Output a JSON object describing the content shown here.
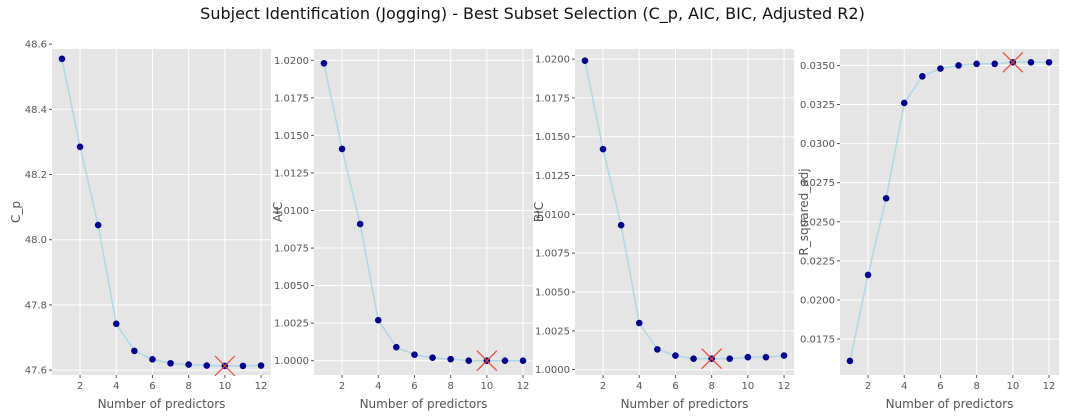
{
  "figure": {
    "title": "Subject Identification (Jogging) - Best Subset Selection (C_p, AIC, BIC, Adjusted R2)"
  },
  "style": {
    "panel_bg": "#e5e5e5",
    "grid": "#ffffff",
    "line_color": "#add8e6",
    "marker_color": "#00008b",
    "best_marker_color": "#e8483a"
  },
  "chart_data": [
    {
      "type": "line",
      "xlabel": "Number of predictors",
      "ylabel": "C_p",
      "x": [
        1,
        2,
        3,
        4,
        5,
        6,
        7,
        8,
        9,
        10,
        11,
        12
      ],
      "values": [
        48.555,
        48.285,
        48.045,
        47.742,
        47.659,
        47.633,
        47.621,
        47.617,
        47.614,
        47.613,
        47.613,
        47.614
      ],
      "best_x": 10,
      "xlim": [
        0.45,
        12.55
      ],
      "ylim": [
        47.585,
        48.585
      ],
      "xticks": [
        2,
        4,
        6,
        8,
        10,
        12
      ],
      "yticks": [
        47.6,
        47.8,
        48.0,
        48.2,
        48.4,
        48.6
      ],
      "ytick_labels": [
        "47.6",
        "47.8",
        "48.0",
        "48.2",
        "48.4",
        "48.6"
      ]
    },
    {
      "type": "line",
      "xlabel": "Number of predictors",
      "ylabel": "AIC",
      "x": [
        1,
        2,
        3,
        4,
        5,
        6,
        7,
        8,
        9,
        10,
        11,
        12
      ],
      "values": [
        1.0198,
        1.0141,
        1.0091,
        1.0027,
        1.0009,
        1.0004,
        1.0002,
        1.0001,
        1.0,
        1.0,
        1.0,
        1.0
      ],
      "best_x": 10,
      "xlim": [
        0.45,
        12.55
      ],
      "ylim": [
        0.99905,
        1.02075
      ],
      "xticks": [
        2,
        4,
        6,
        8,
        10,
        12
      ],
      "yticks": [
        1.0,
        1.0025,
        1.005,
        1.0075,
        1.01,
        1.0125,
        1.015,
        1.0175,
        1.02
      ],
      "ytick_labels": [
        "1.0000",
        "1.0025",
        "1.0050",
        "1.0075",
        "1.0100",
        "1.0125",
        "1.0150",
        "1.0175",
        "1.0200"
      ]
    },
    {
      "type": "line",
      "xlabel": "Number of predictors",
      "ylabel": "BIC",
      "x": [
        1,
        2,
        3,
        4,
        5,
        6,
        7,
        8,
        9,
        10,
        11,
        12
      ],
      "values": [
        1.0199,
        1.0142,
        1.0093,
        1.003,
        1.0013,
        1.0009,
        1.0007,
        1.0007,
        1.0007,
        1.0008,
        1.0008,
        1.0009
      ],
      "best_x": 8,
      "xlim": [
        0.45,
        12.55
      ],
      "ylim": [
        0.99965,
        1.02065
      ],
      "xticks": [
        2,
        4,
        6,
        8,
        10,
        12
      ],
      "yticks": [
        1.0,
        1.0025,
        1.005,
        1.0075,
        1.01,
        1.0125,
        1.015,
        1.0175,
        1.02
      ],
      "ytick_labels": [
        "1.0000",
        "1.0025",
        "1.0050",
        "1.0075",
        "1.0100",
        "1.0125",
        "1.0150",
        "1.0175",
        "1.0200"
      ]
    },
    {
      "type": "line",
      "xlabel": "Number of predictors",
      "ylabel": "R_squared_adj",
      "x": [
        1,
        2,
        3,
        4,
        5,
        6,
        7,
        8,
        9,
        10,
        11,
        12
      ],
      "values": [
        0.0161,
        0.0216,
        0.0265,
        0.0326,
        0.0343,
        0.0348,
        0.035,
        0.0351,
        0.0351,
        0.0352,
        0.0352,
        0.0352
      ],
      "best_x": 10,
      "xlim": [
        0.45,
        12.55
      ],
      "ylim": [
        0.0152,
        0.03605
      ],
      "xticks": [
        2,
        4,
        6,
        8,
        10,
        12
      ],
      "yticks": [
        0.0175,
        0.02,
        0.0225,
        0.025,
        0.0275,
        0.03,
        0.0325,
        0.035
      ],
      "ytick_labels": [
        "0.0175",
        "0.0200",
        "0.0225",
        "0.0250",
        "0.0275",
        "0.0300",
        "0.0325",
        "0.0350"
      ]
    }
  ]
}
